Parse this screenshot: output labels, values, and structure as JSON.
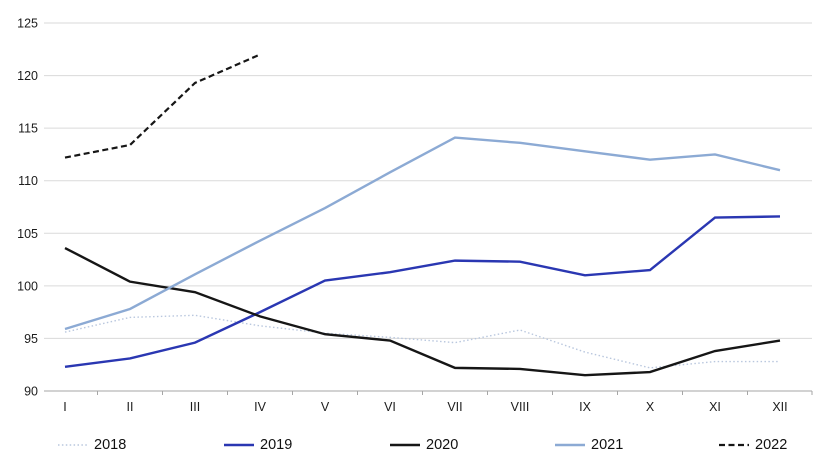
{
  "chart_data": {
    "type": "line",
    "title": "",
    "xlabel": "",
    "ylabel": "",
    "categories": [
      "I",
      "II",
      "III",
      "IV",
      "V",
      "VI",
      "VII",
      "VIII",
      "IX",
      "X",
      "XI",
      "XII"
    ],
    "y_ticks": [
      90,
      95,
      100,
      105,
      110,
      115,
      120,
      125
    ],
    "ylim": [
      90,
      125
    ],
    "grid": true,
    "legend_position": "bottom",
    "series": [
      {
        "name": "2018",
        "line_style": "dotted",
        "color": "#b9c7de",
        "values": [
          95.6,
          97.0,
          97.2,
          96.2,
          95.5,
          95.1,
          94.6,
          95.8,
          93.7,
          92.2,
          92.8,
          92.8
        ]
      },
      {
        "name": "2019",
        "line_style": "solid",
        "color": "#2a37b2",
        "values": [
          92.3,
          93.1,
          94.6,
          97.5,
          100.5,
          101.3,
          102.4,
          102.3,
          101.0,
          101.5,
          106.5,
          106.6
        ]
      },
      {
        "name": "2020",
        "line_style": "solid",
        "color": "#161616",
        "values": [
          103.6,
          100.4,
          99.4,
          97.1,
          95.4,
          94.8,
          92.2,
          92.1,
          91.5,
          91.8,
          93.8,
          94.8
        ]
      },
      {
        "name": "2021",
        "line_style": "solid",
        "color": "#8caad4",
        "values": [
          95.9,
          97.8,
          101.1,
          104.3,
          107.4,
          110.8,
          114.1,
          113.6,
          112.8,
          112.0,
          112.5,
          111.0
        ]
      },
      {
        "name": "2022",
        "line_style": "dashed",
        "color": "#161616",
        "values": [
          112.2,
          113.4,
          119.3,
          122.0,
          null,
          null,
          null,
          null,
          null,
          null,
          null,
          null
        ]
      }
    ]
  },
  "colors": {
    "background": "#ffffff",
    "gridline": "#dadada",
    "axis_line": "#a6a6a6",
    "tick_mark": "#a6a6a6",
    "axis_label": "#1c1c1c",
    "legend_text": "#111111"
  }
}
